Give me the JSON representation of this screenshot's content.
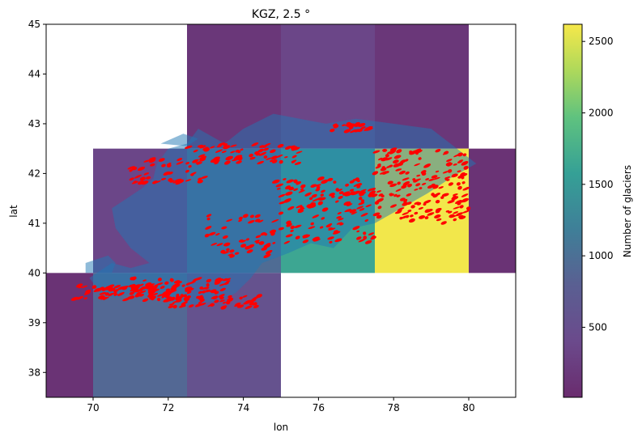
{
  "chart_data": {
    "type": "heatmap",
    "title": "KGZ, 2.5 °",
    "xlabel": "lon",
    "ylabel": "lat",
    "xlim": [
      68.75,
      81.25
    ],
    "ylim": [
      37.5,
      45.0
    ],
    "x_ticks": [
      70,
      72,
      74,
      76,
      78,
      80
    ],
    "y_ticks": [
      38,
      39,
      40,
      41,
      42,
      43,
      44,
      45
    ],
    "grid": false,
    "cell_size_deg": 2.5,
    "cells": [
      {
        "lon": [
          72.5,
          75.0
        ],
        "lat": [
          42.5,
          45.0
        ],
        "count": 150
      },
      {
        "lon": [
          75.0,
          77.5
        ],
        "lat": [
          42.5,
          45.0
        ],
        "count": 350
      },
      {
        "lon": [
          77.5,
          80.0
        ],
        "lat": [
          42.5,
          45.0
        ],
        "count": 150
      },
      {
        "lon": [
          70.0,
          72.5
        ],
        "lat": [
          40.0,
          42.5
        ],
        "count": 350
      },
      {
        "lon": [
          72.5,
          75.0
        ],
        "lat": [
          40.0,
          42.5
        ],
        "count": 950
      },
      {
        "lon": [
          75.0,
          77.5
        ],
        "lat": [
          40.0,
          42.5
        ],
        "count": 1650
      },
      {
        "lon": [
          77.5,
          80.0
        ],
        "lat": [
          40.0,
          42.5
        ],
        "count": 2600
      },
      {
        "lon": [
          80.0,
          82.5
        ],
        "lat": [
          40.0,
          42.5
        ],
        "count": 100
      },
      {
        "lon": [
          67.5,
          70.0
        ],
        "lat": [
          37.5,
          40.0
        ],
        "count": 100
      },
      {
        "lon": [
          70.0,
          72.5
        ],
        "lat": [
          37.5,
          40.0
        ],
        "count": 900
      },
      {
        "lon": [
          72.5,
          75.0
        ],
        "lat": [
          37.5,
          40.0
        ],
        "count": 550
      }
    ],
    "country_outline": [
      [
        70.1,
        40.0
      ],
      [
        70.5,
        40.2
      ],
      [
        71.0,
        40.1
      ],
      [
        71.5,
        40.2
      ],
      [
        71.0,
        40.5
      ],
      [
        70.6,
        40.9
      ],
      [
        70.5,
        41.3
      ],
      [
        70.9,
        41.5
      ],
      [
        71.3,
        41.7
      ],
      [
        71.6,
        41.9
      ],
      [
        71.7,
        42.2
      ],
      [
        72.0,
        42.5
      ],
      [
        72.5,
        42.6
      ],
      [
        72.8,
        42.9
      ],
      [
        73.5,
        42.6
      ],
      [
        74.0,
        42.9
      ],
      [
        74.8,
        43.2
      ],
      [
        75.5,
        43.1
      ],
      [
        76.2,
        43.0
      ],
      [
        77.0,
        43.1
      ],
      [
        78.0,
        43.0
      ],
      [
        79.0,
        42.9
      ],
      [
        80.2,
        42.2
      ],
      [
        79.5,
        41.9
      ],
      [
        78.9,
        41.6
      ],
      [
        78.2,
        41.3
      ],
      [
        77.5,
        41.0
      ],
      [
        76.9,
        40.9
      ],
      [
        76.4,
        40.5
      ],
      [
        75.8,
        40.6
      ],
      [
        75.2,
        40.4
      ],
      [
        74.5,
        40.2
      ],
      [
        74.2,
        39.9
      ],
      [
        73.8,
        39.6
      ],
      [
        73.4,
        39.45
      ],
      [
        72.5,
        39.35
      ],
      [
        71.8,
        39.5
      ],
      [
        71.0,
        39.6
      ],
      [
        70.6,
        39.5
      ],
      [
        70.2,
        39.6
      ],
      [
        69.9,
        39.9
      ]
    ],
    "blue_region": [
      [
        69.8,
        40.0
      ],
      [
        69.8,
        40.2
      ],
      [
        70.4,
        40.35
      ],
      [
        70.6,
        40.2
      ],
      [
        70.5,
        40.0
      ]
    ],
    "blue_region_2": [
      [
        71.8,
        42.6
      ],
      [
        72.4,
        42.8
      ],
      [
        72.8,
        42.7
      ],
      [
        72.5,
        42.55
      ]
    ],
    "glacier_clusters": [
      {
        "lon": [
          69.5,
          72.6
        ],
        "lat": [
          39.45,
          39.75
        ],
        "n": 90
      },
      {
        "lon": [
          71.0,
          73.6
        ],
        "lat": [
          39.6,
          39.9
        ],
        "n": 60
      },
      {
        "lon": [
          71.9,
          74.5
        ],
        "lat": [
          39.3,
          39.55
        ],
        "n": 60
      },
      {
        "lon": [
          71.0,
          73.0
        ],
        "lat": [
          41.8,
          42.3
        ],
        "n": 50
      },
      {
        "lon": [
          72.5,
          75.5
        ],
        "lat": [
          42.2,
          42.6
        ],
        "n": 70
      },
      {
        "lon": [
          73.0,
          74.9
        ],
        "lat": [
          40.3,
          41.2
        ],
        "n": 50
      },
      {
        "lon": [
          75.0,
          77.5
        ],
        "lat": [
          40.6,
          41.9
        ],
        "n": 90
      },
      {
        "lon": [
          76.2,
          77.4
        ],
        "lat": [
          42.85,
          43.0
        ],
        "n": 25
      },
      {
        "lon": [
          77.5,
          80.0
        ],
        "lat": [
          41.0,
          42.5
        ],
        "n": 180
      },
      {
        "lon": [
          74.8,
          77.2
        ],
        "lat": [
          41.2,
          41.9
        ],
        "n": 50
      }
    ],
    "colorbar": {
      "label": "Number of glaciers",
      "range": [
        10,
        2620
      ],
      "ticks": [
        500,
        1000,
        1500,
        2000,
        2500
      ],
      "colormap": "viridis"
    },
    "colors": {
      "glacier": "#ff0000",
      "outline": "#1f77b4"
    }
  }
}
